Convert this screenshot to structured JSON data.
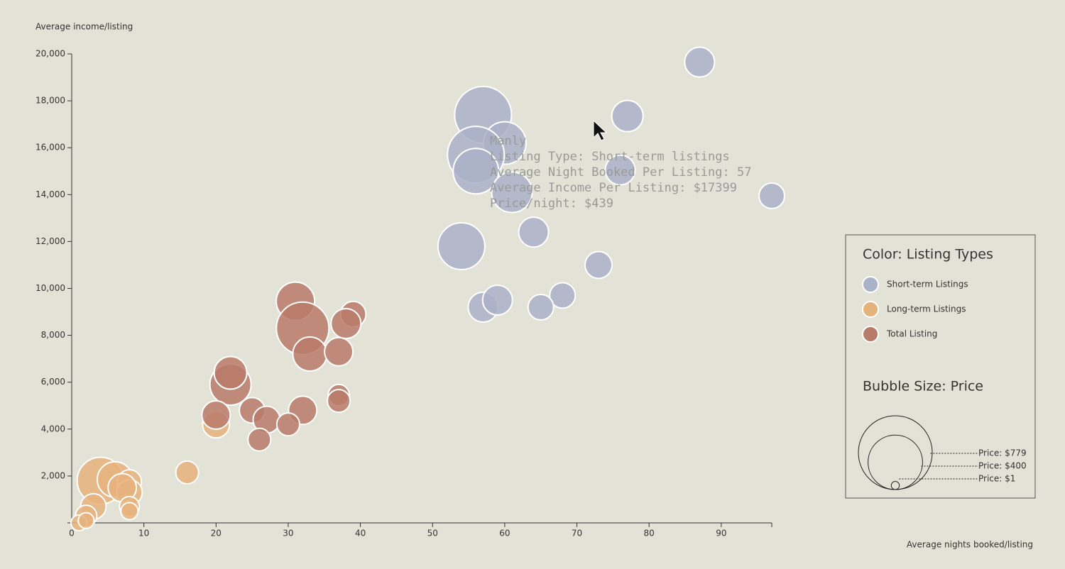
{
  "chart_data": {
    "type": "scatter",
    "ylabel": "Average income/listing",
    "xlabel": "Average nights booked/listing",
    "xlim": [
      0,
      97
    ],
    "ylim": [
      0,
      20000
    ],
    "xticks": [
      0,
      10,
      20,
      30,
      40,
      50,
      60,
      70,
      80,
      90
    ],
    "yticks": [
      {
        "value": 2000,
        "label": "2,000"
      },
      {
        "value": 4000,
        "label": "4,000"
      },
      {
        "value": 6000,
        "label": "6,000"
      },
      {
        "value": 8000,
        "label": "8,000"
      },
      {
        "value": 10000,
        "label": "10,000"
      },
      {
        "value": 12000,
        "label": "12,000"
      },
      {
        "value": 14000,
        "label": "14,000"
      },
      {
        "value": 16000,
        "label": "16,000"
      },
      {
        "value": 18000,
        "label": "18,000"
      },
      {
        "value": 20000,
        "label": "20,000"
      }
    ],
    "color_legend_title": "Color: Listing Types",
    "size_legend_title": "Bubble Size: Price",
    "size_legend": [
      {
        "value": 779,
        "label": "Price: $779"
      },
      {
        "value": 400,
        "label": "Price: $400"
      },
      {
        "value": 1,
        "label": "Price: $1"
      }
    ],
    "series": [
      {
        "name": "Short-term Listings",
        "color": "#aab2c8",
        "x": [
          87,
          57,
          77,
          60,
          56,
          56,
          76,
          61,
          97,
          54,
          64,
          73,
          57,
          59,
          68,
          65
        ],
        "values": [
          19650,
          17399,
          17350,
          16200,
          15700,
          15000,
          15050,
          14100,
          13950,
          11800,
          12400,
          11000,
          9200,
          9500,
          9700,
          9200
        ],
        "sizes": [
          98,
          439,
          110,
          228,
          438,
          265,
          98,
          203,
          66,
          284,
          98,
          76,
          98,
          98,
          66,
          66
        ]
      },
      {
        "name": "Long-term Listings",
        "color": "#e6b27c",
        "x": [
          20,
          16,
          4,
          6,
          8,
          8,
          7,
          3,
          2,
          8,
          8,
          1,
          2
        ],
        "values": [
          4200,
          2150,
          1800,
          1850,
          1750,
          1300,
          1500,
          700,
          300,
          700,
          500,
          0,
          100
        ],
        "sizes": [
          76,
          49,
          284,
          149,
          57,
          66,
          86,
          66,
          41,
          34,
          22,
          17,
          17
        ]
      },
      {
        "name": "Total Listing",
        "color": "#b87a6a",
        "x": [
          31,
          32,
          33,
          39,
          38,
          37,
          22,
          22,
          20,
          25,
          27,
          32,
          30,
          26,
          37,
          37
        ],
        "values": [
          9450,
          8300,
          7200,
          8900,
          8500,
          7300,
          5900,
          6400,
          4600,
          4800,
          4400,
          4800,
          4200,
          3550,
          5450,
          5200
        ],
        "sizes": [
          179,
          368,
          135,
          66,
          98,
          86,
          211,
          122,
          86,
          66,
          76,
          86,
          49,
          49,
          41,
          49
        ]
      }
    ],
    "tooltip": [
      "Manly",
      "Listing Type: Short-term listings",
      "Average Night Booked Per Listing: 57",
      "Average Income Per Listing: $17399",
      "Price/night: $439"
    ]
  }
}
